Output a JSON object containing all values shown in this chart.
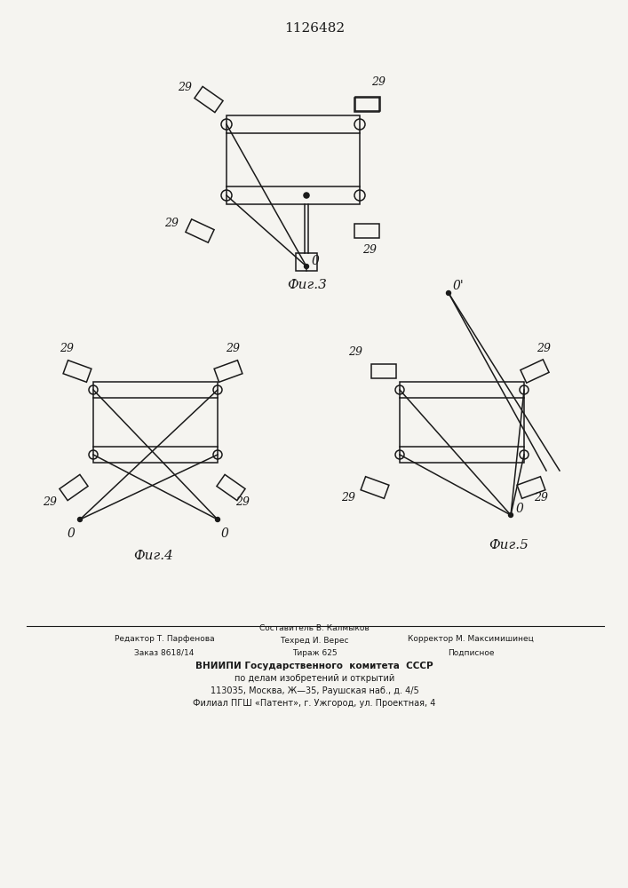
{
  "title": "1126482",
  "bg_color": "#f5f4f0",
  "line_color": "#1a1a1a",
  "fig3_caption": "Фиг.3",
  "fig4_caption": "Фиг.4",
  "fig5_caption": "Фиг.5",
  "label29": "29"
}
